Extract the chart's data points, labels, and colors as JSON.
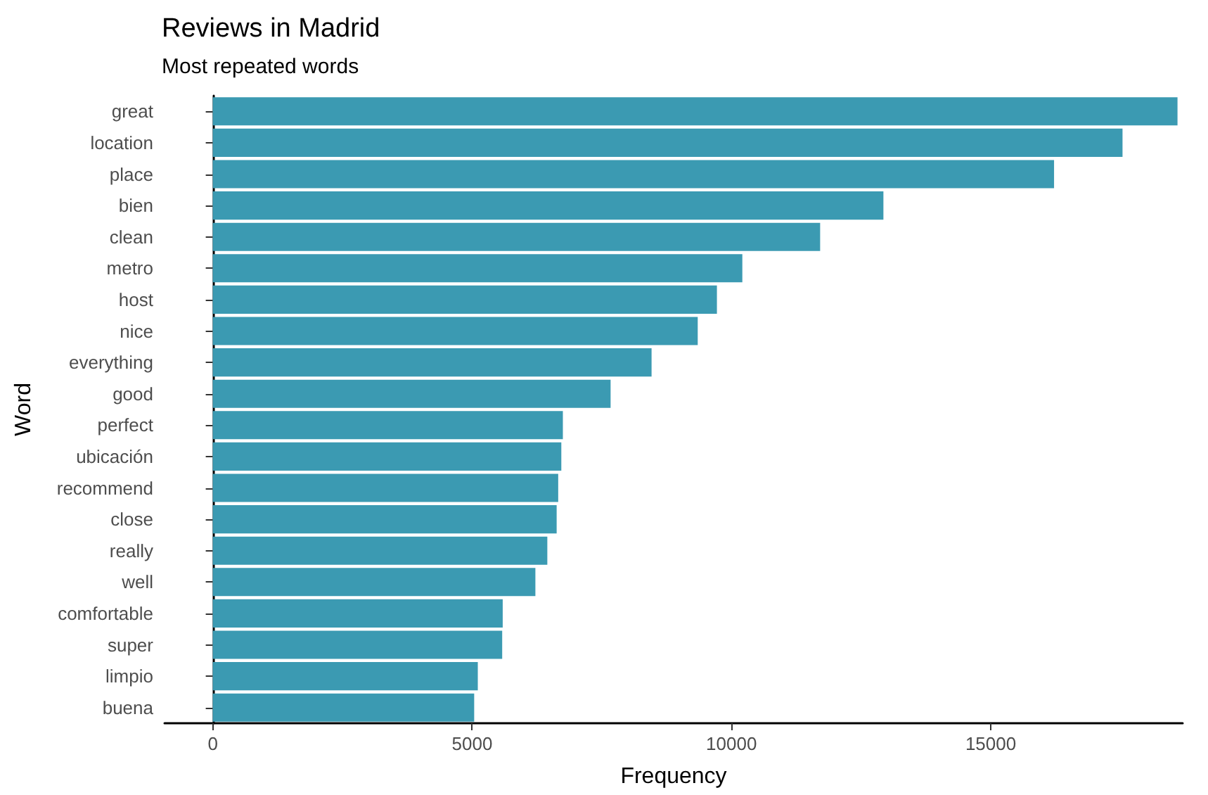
{
  "chart_data": {
    "type": "bar",
    "orientation": "horizontal",
    "title": "Reviews in Madrid",
    "subtitle": "Most repeated words",
    "xlabel": "Frequency",
    "ylabel": "Word",
    "categories": [
      "great",
      "location",
      "place",
      "bien",
      "clean",
      "metro",
      "host",
      "nice",
      "everything",
      "good",
      "perfect",
      "ubicación",
      "recommend",
      "close",
      "really",
      "well",
      "comfortable",
      "super",
      "limpio",
      "buena"
    ],
    "values": [
      18600,
      17540,
      16220,
      12930,
      11710,
      10210,
      9720,
      9350,
      8460,
      7670,
      6750,
      6720,
      6660,
      6630,
      6450,
      6220,
      5590,
      5580,
      5110,
      5040
    ],
    "color": "#3b9ab2",
    "xlim": [
      -930,
      18700
    ],
    "xticks": [
      0,
      5000,
      10000,
      15000
    ]
  }
}
